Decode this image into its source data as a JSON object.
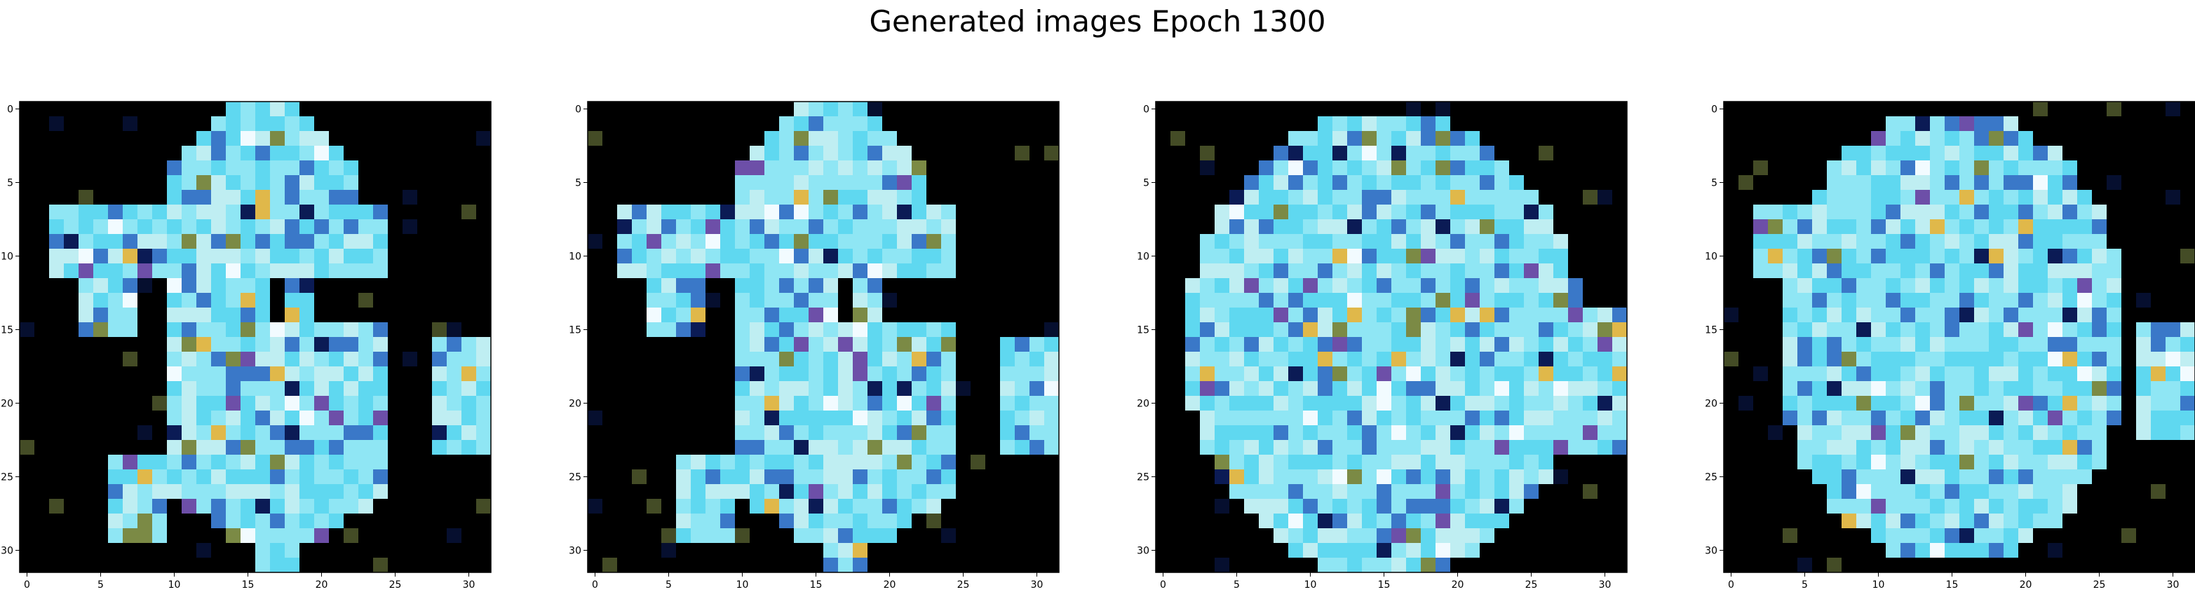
{
  "title": "Generated images Epoch 1300",
  "grid_size": 32,
  "axis": {
    "ticks": [
      0,
      5,
      10,
      15,
      20,
      25,
      30
    ]
  },
  "palette": {
    "background": "#000000",
    "cyan_light": "#8fe6f4",
    "cyan": "#5fd8f0",
    "cyan_pale": "#bfeef2",
    "blue": "#3a78c8",
    "navy": "#0b1b55",
    "olive": "#7b8a45",
    "yellow": "#e0b84a",
    "purple": "#6d4fa8",
    "white": "#f2fbff"
  },
  "images": [
    {
      "label": "generated-image-1"
    },
    {
      "label": "generated-image-2"
    },
    {
      "label": "generated-image-3"
    },
    {
      "label": "generated-image-4"
    }
  ]
}
